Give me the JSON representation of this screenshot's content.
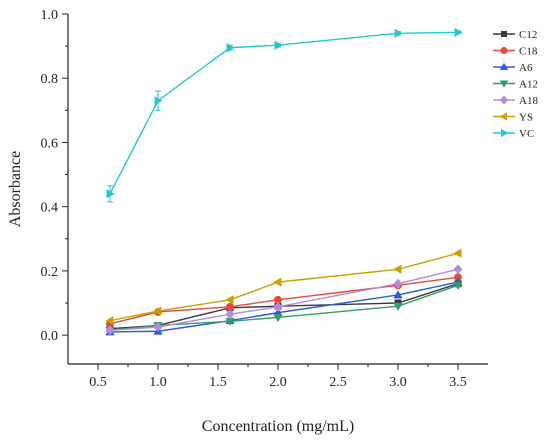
{
  "chart_data": {
    "type": "line",
    "title": "",
    "xlabel": "Concentration (mg/mL)",
    "ylabel": "Absorbance",
    "xlim": [
      0.25,
      3.75
    ],
    "ylim": [
      -0.09,
      1.0
    ],
    "xticks": [
      0.5,
      1.0,
      1.5,
      2.0,
      2.5,
      3.0,
      3.5
    ],
    "xtick_labels": [
      "0.5",
      "1.0",
      "1.5",
      "2.0",
      "2.5",
      "3.0",
      "3.5"
    ],
    "yticks": [
      0.0,
      0.2,
      0.4,
      0.6,
      0.8,
      1.0
    ],
    "ytick_labels": [
      "0.0",
      "0.2",
      "0.4",
      "0.6",
      "0.8",
      "1.0"
    ],
    "grid": false,
    "legend_position": "top-right",
    "x": [
      0.6,
      1.0,
      1.6,
      2.0,
      3.0,
      3.5
    ],
    "series": [
      {
        "name": "C12",
        "color": "#3a3a3a",
        "marker": "square",
        "values": [
          0.02,
          0.03,
          0.085,
          0.09,
          0.1,
          0.16
        ]
      },
      {
        "name": "C18",
        "color": "#e8473b",
        "marker": "circle",
        "values": [
          0.035,
          0.072,
          0.088,
          0.11,
          0.155,
          0.18
        ]
      },
      {
        "name": "A6",
        "color": "#2a5bd7",
        "marker": "triangle-up",
        "values": [
          0.01,
          0.012,
          0.045,
          0.07,
          0.125,
          0.165
        ]
      },
      {
        "name": "A12",
        "color": "#2e9e6a",
        "marker": "triangle-down",
        "values": [
          0.015,
          0.03,
          0.043,
          0.055,
          0.09,
          0.155
        ]
      },
      {
        "name": "A18",
        "color": "#b58ae0",
        "marker": "diamond",
        "values": [
          0.015,
          0.025,
          0.065,
          0.088,
          0.16,
          0.205
        ]
      },
      {
        "name": "YS",
        "color": "#c9a100",
        "marker": "triangle-left",
        "values": [
          0.045,
          0.075,
          0.11,
          0.165,
          0.205,
          0.255
        ]
      },
      {
        "name": "VC",
        "color": "#22c8cc",
        "marker": "triangle-right",
        "values": [
          0.44,
          0.73,
          0.895,
          0.903,
          0.94,
          0.943
        ],
        "errors": [
          0.025,
          0.03,
          0.008,
          0.006,
          0.005,
          0.004
        ]
      }
    ]
  }
}
